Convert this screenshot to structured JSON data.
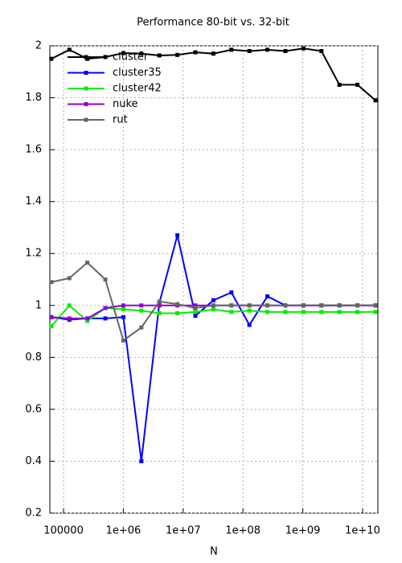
{
  "chart_data": {
    "type": "line",
    "title": "Performance 80-bit vs. 32-bit",
    "x_label": "N",
    "x": [
      62500,
      125000,
      250000,
      500000,
      1000000,
      2000000,
      4000000,
      8000000,
      16000000,
      32000000,
      64000000,
      128000000,
      256000000,
      512000000,
      1024000000,
      2048000000,
      4096000000,
      8192000000,
      16384000000
    ],
    "series": [
      {
        "name": "cluster",
        "color": "#000000",
        "values": [
          1.95,
          1.985,
          1.95,
          1.957,
          1.972,
          1.97,
          1.963,
          1.965,
          1.975,
          1.97,
          1.985,
          1.98,
          1.985,
          1.98,
          1.99,
          1.98,
          1.85,
          1.85,
          1.79
        ]
      },
      {
        "name": "cluster35",
        "color": "#0000ff",
        "values": [
          0.955,
          0.945,
          0.95,
          0.95,
          0.955,
          0.4,
          1.01,
          1.27,
          0.96,
          1.02,
          1.05,
          0.925,
          1.035,
          1.0,
          1.0,
          1.0,
          1.0,
          1.0,
          1.0
        ]
      },
      {
        "name": "cluster42",
        "color": "#00ee00",
        "values": [
          0.92,
          1.0,
          0.94,
          0.99,
          0.985,
          0.98,
          0.97,
          0.97,
          0.975,
          0.985,
          0.975,
          0.98,
          0.975,
          0.975,
          0.975,
          0.975,
          0.975,
          0.975,
          0.975
        ]
      },
      {
        "name": "nuke",
        "color": "#9400d3",
        "values": [
          0.955,
          0.95,
          0.95,
          0.99,
          1.0,
          1.0,
          1.0,
          1.0,
          1.0,
          1.0,
          1.0,
          1.0,
          1.0,
          1.0,
          1.0,
          1.0,
          1.0,
          1.0,
          1.0
        ]
      },
      {
        "name": "rut",
        "color": "#666666",
        "values": [
          1.09,
          1.105,
          1.165,
          1.1,
          0.865,
          0.915,
          1.015,
          1.005,
          0.99,
          1.0,
          1.0,
          1.0,
          1.0,
          1.0,
          1.0,
          1.0,
          1.0,
          1.0,
          1.0
        ]
      }
    ],
    "xscale": "log",
    "xlim": [
      59000,
      18000000000
    ],
    "xticks": [
      100000,
      {
        "value": 1000000,
        "label": "1e+06"
      },
      {
        "value": 10000000,
        "label": "1e+07"
      },
      {
        "value": 100000000,
        "label": "1e+08"
      },
      {
        "value": 1000000000,
        "label": "1e+09"
      },
      {
        "value": 10000000000,
        "label": "1e+10"
      }
    ],
    "ylim": [
      0.2,
      2
    ],
    "yticks": [
      0.2,
      0.4,
      0.6,
      0.8,
      1,
      1.2,
      1.4,
      1.6,
      1.8,
      2
    ],
    "grid": true,
    "legend": "top-left"
  }
}
